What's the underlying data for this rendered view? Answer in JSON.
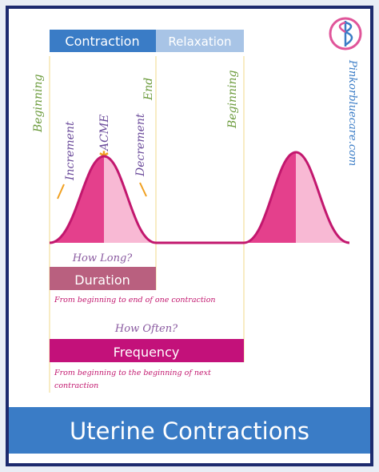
{
  "top_bar": {
    "contraction": "Contraction",
    "relaxation": "Relaxation"
  },
  "phase_labels": {
    "beginning_1": "Beginning",
    "increment": "Increment",
    "acme": "ACME",
    "decrement": "Decrement",
    "end": "End",
    "beginning_2": "Beginning"
  },
  "website": "Pinkorbluecare.com",
  "duration": {
    "question": "How Long?",
    "label": "Duration",
    "description": "From beginning to end of one contraction"
  },
  "frequency": {
    "question": "How Often?",
    "label": "Frequency",
    "description_line_1": "From beginning to the beginning of next",
    "description_line_2": "contraction"
  },
  "footer": {
    "title": "Uterine Contractions"
  }
}
